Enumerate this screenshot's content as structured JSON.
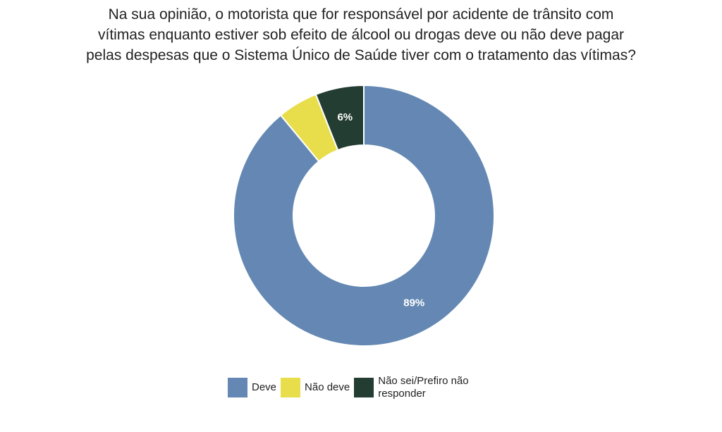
{
  "chart_data": {
    "type": "pie",
    "variant": "donut",
    "title_lines": [
      "Na sua opinião, o motorista que for responsável por acidente de trânsito com",
      "vítimas enquanto estiver sob efeito de álcool ou drogas deve ou não deve pagar",
      "pelas despesas que o Sistema Único de Saúde tiver com o tratamento das vítimas?"
    ],
    "categories": [
      "Deve",
      "Não deve",
      "Não sei/Prefiro não responder"
    ],
    "values": [
      89,
      5,
      6
    ],
    "data_labels": [
      "89%",
      "",
      "6%"
    ],
    "colors": [
      "#6488b3",
      "#e8de4c",
      "#243d33"
    ],
    "legend_position": "bottom"
  },
  "legend": {
    "items": [
      {
        "label": "Deve",
        "color": "#6488b3"
      },
      {
        "label": "Não deve",
        "color": "#e8de4c"
      },
      {
        "label": "Não sei/Prefiro não responder",
        "color": "#243d33"
      }
    ]
  }
}
